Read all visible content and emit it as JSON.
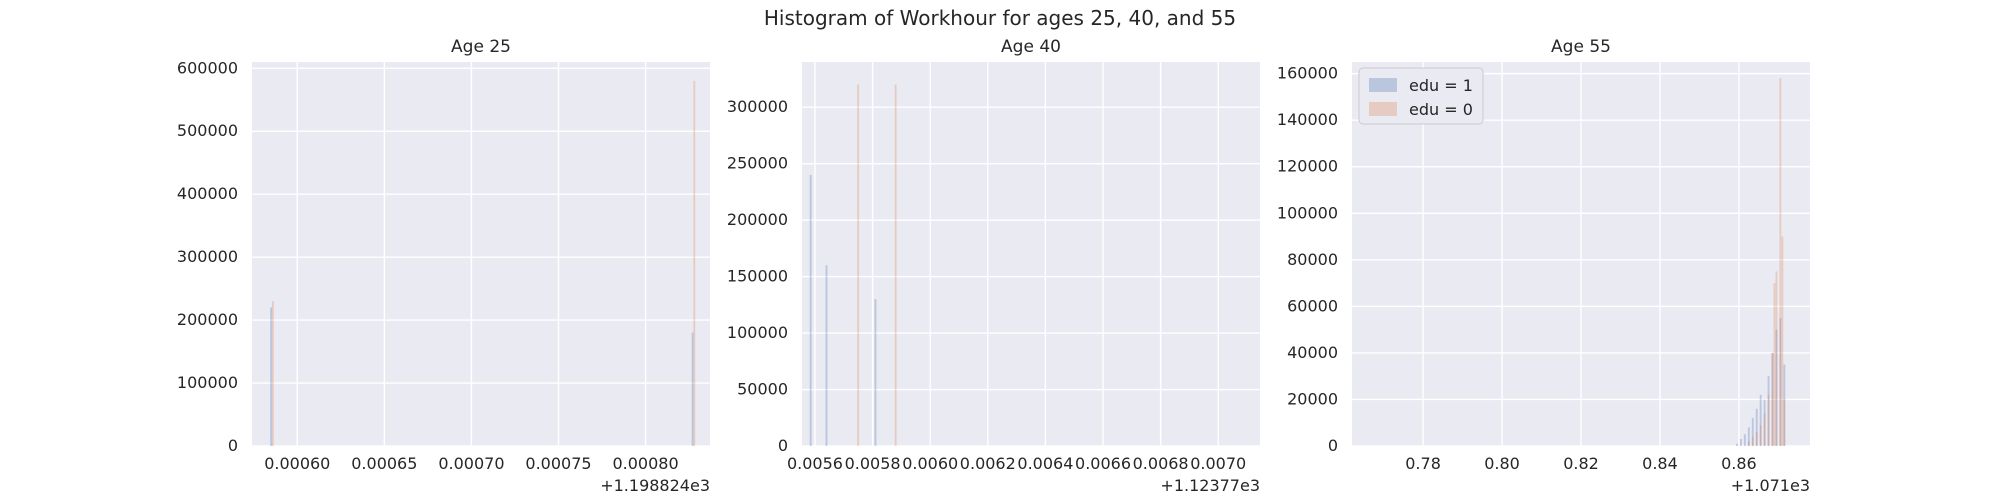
{
  "figure_title": "Histogram of Workhour for ages 25, 40, and 55",
  "colors": {
    "background": "#eaeaf2",
    "grid": "#ffffff",
    "edu1": "#4c72b0",
    "edu0": "#dd8452",
    "text": "#262626"
  },
  "chart_data": [
    {
      "type": "histogram",
      "title": "Age 25",
      "xlabel": "",
      "ylabel": "",
      "x_offset_label": "+1.198824e3",
      "xlim": [
        0.000574,
        0.000837
      ],
      "ylim": [
        0,
        610000
      ],
      "xticks": [
        {
          "value": 0.0006,
          "label": "0.00060"
        },
        {
          "value": 0.00065,
          "label": "0.00065"
        },
        {
          "value": 0.0007,
          "label": "0.00070"
        },
        {
          "value": 0.00075,
          "label": "0.00075"
        },
        {
          "value": 0.0008,
          "label": "0.00080"
        }
      ],
      "yticks": [
        {
          "value": 0,
          "label": "0"
        },
        {
          "value": 100000,
          "label": "100000"
        },
        {
          "value": 200000,
          "label": "200000"
        },
        {
          "value": 300000,
          "label": "300000"
        },
        {
          "value": 400000,
          "label": "400000"
        },
        {
          "value": 500000,
          "label": "500000"
        },
        {
          "value": 600000,
          "label": "600000"
        }
      ],
      "grid": true,
      "legend": null,
      "series": [
        {
          "name": "edu = 1",
          "bars": [
            {
              "x": 0.000585,
              "y": 220000
            },
            {
              "x": 0.000827,
              "y": 180000
            }
          ]
        },
        {
          "name": "edu = 0",
          "bars": [
            {
              "x": 0.000586,
              "y": 230000
            },
            {
              "x": 0.000828,
              "y": 580000
            }
          ]
        }
      ]
    },
    {
      "type": "histogram",
      "title": "Age 40",
      "xlabel": "",
      "ylabel": "",
      "x_offset_label": "+1.12377e3",
      "xlim": [
        0.005555,
        0.007145
      ],
      "ylim": [
        0,
        340000
      ],
      "xticks": [
        {
          "value": 0.0056,
          "label": "0.0056"
        },
        {
          "value": 0.0058,
          "label": "0.0058"
        },
        {
          "value": 0.006,
          "label": "0.0060"
        },
        {
          "value": 0.0062,
          "label": "0.0062"
        },
        {
          "value": 0.0064,
          "label": "0.0064"
        },
        {
          "value": 0.0066,
          "label": "0.0066"
        },
        {
          "value": 0.0068,
          "label": "0.0068"
        },
        {
          "value": 0.007,
          "label": "0.0070"
        }
      ],
      "yticks": [
        {
          "value": 0,
          "label": "0"
        },
        {
          "value": 50000,
          "label": "50000"
        },
        {
          "value": 100000,
          "label": "100000"
        },
        {
          "value": 150000,
          "label": "150000"
        },
        {
          "value": 200000,
          "label": "200000"
        },
        {
          "value": 250000,
          "label": "250000"
        },
        {
          "value": 300000,
          "label": "300000"
        }
      ],
      "grid": true,
      "legend": null,
      "series": [
        {
          "name": "edu = 1",
          "bars": [
            {
              "x": 0.005585,
              "y": 240000
            },
            {
              "x": 0.00564,
              "y": 160000
            },
            {
              "x": 0.00581,
              "y": 130000
            }
          ]
        },
        {
          "name": "edu = 0",
          "bars": [
            {
              "x": 0.00575,
              "y": 320000
            },
            {
              "x": 0.00588,
              "y": 320000
            }
          ]
        }
      ]
    },
    {
      "type": "histogram",
      "title": "Age 55",
      "xlabel": "",
      "ylabel": "",
      "x_offset_label": "+1.071e3",
      "xlim": [
        0.762,
        0.878
      ],
      "ylim": [
        0,
        165000
      ],
      "xticks": [
        {
          "value": 0.78,
          "label": "0.78"
        },
        {
          "value": 0.8,
          "label": "0.80"
        },
        {
          "value": 0.82,
          "label": "0.82"
        },
        {
          "value": 0.84,
          "label": "0.84"
        },
        {
          "value": 0.86,
          "label": "0.86"
        }
      ],
      "yticks": [
        {
          "value": 0,
          "label": "0"
        },
        {
          "value": 20000,
          "label": "20000"
        },
        {
          "value": 40000,
          "label": "40000"
        },
        {
          "value": 60000,
          "label": "60000"
        },
        {
          "value": 80000,
          "label": "80000"
        },
        {
          "value": 100000,
          "label": "100000"
        },
        {
          "value": 120000,
          "label": "120000"
        },
        {
          "value": 140000,
          "label": "140000"
        },
        {
          "value": 160000,
          "label": "160000"
        }
      ],
      "grid": true,
      "legend": "top-left",
      "series": [
        {
          "name": "edu = 1",
          "bars": [
            {
              "x": 0.8595,
              "y": 1000
            },
            {
              "x": 0.8605,
              "y": 3000
            },
            {
              "x": 0.8615,
              "y": 5000
            },
            {
              "x": 0.8625,
              "y": 8000
            },
            {
              "x": 0.8635,
              "y": 12000
            },
            {
              "x": 0.8645,
              "y": 16000
            },
            {
              "x": 0.8655,
              "y": 22000
            },
            {
              "x": 0.8665,
              "y": 20000
            },
            {
              "x": 0.8675,
              "y": 30000
            },
            {
              "x": 0.8685,
              "y": 40000
            },
            {
              "x": 0.8695,
              "y": 50000
            },
            {
              "x": 0.8705,
              "y": 55000
            },
            {
              "x": 0.8715,
              "y": 35000
            }
          ]
        },
        {
          "name": "edu = 0",
          "bars": [
            {
              "x": 0.8625,
              "y": 2000
            },
            {
              "x": 0.8635,
              "y": 4000
            },
            {
              "x": 0.8645,
              "y": 6000
            },
            {
              "x": 0.8655,
              "y": 9000
            },
            {
              "x": 0.8665,
              "y": 14000
            },
            {
              "x": 0.8675,
              "y": 22000
            },
            {
              "x": 0.8685,
              "y": 40000
            },
            {
              "x": 0.869,
              "y": 70000
            },
            {
              "x": 0.8695,
              "y": 75000
            },
            {
              "x": 0.8705,
              "y": 158000
            },
            {
              "x": 0.871,
              "y": 90000
            },
            {
              "x": 0.8715,
              "y": 20000
            }
          ]
        }
      ],
      "legend_entries": [
        {
          "label": "edu = 1",
          "color": "#4c72b0"
        },
        {
          "label": "edu = 0",
          "color": "#dd8452"
        }
      ]
    }
  ]
}
